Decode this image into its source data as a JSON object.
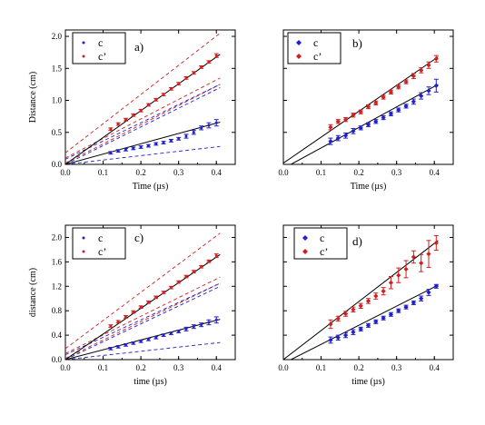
{
  "chart_data": [
    {
      "type": "scatter",
      "panel_label": "a)",
      "xlabel": "Time (µs)",
      "ylabel": "Distance (cm)",
      "xlim": [
        0,
        0.45
      ],
      "ylim": [
        0,
        2.1
      ],
      "xticks": [
        "0.0",
        "0.1",
        "0.2",
        "0.3",
        "0.4"
      ],
      "yticks": [
        "0.0",
        "0.5",
        "1.0",
        "1.5",
        "2.0"
      ],
      "legend": {
        "position": "top-left",
        "entries": [
          "c",
          "c’"
        ]
      },
      "marker": "small",
      "series": [
        {
          "name": "c",
          "color": "#1f1fd0",
          "x": [
            0.12,
            0.14,
            0.16,
            0.18,
            0.2,
            0.22,
            0.24,
            0.26,
            0.28,
            0.3,
            0.32,
            0.34,
            0.36,
            0.38,
            0.4
          ],
          "y": [
            0.18,
            0.21,
            0.23,
            0.25,
            0.27,
            0.29,
            0.32,
            0.34,
            0.37,
            0.4,
            0.44,
            0.5,
            0.57,
            0.61,
            0.65
          ],
          "err": [
            0.02,
            0.02,
            0.02,
            0.02,
            0.02,
            0.02,
            0.02,
            0.02,
            0.02,
            0.02,
            0.03,
            0.03,
            0.03,
            0.04,
            0.05
          ]
        },
        {
          "name": "c’",
          "color": "#d01f1f",
          "x": [
            0.12,
            0.14,
            0.16,
            0.18,
            0.2,
            0.22,
            0.24,
            0.26,
            0.28,
            0.3,
            0.32,
            0.34,
            0.36,
            0.38,
            0.4
          ],
          "y": [
            0.55,
            0.63,
            0.7,
            0.77,
            0.84,
            0.93,
            1.01,
            1.09,
            1.18,
            1.26,
            1.35,
            1.43,
            1.52,
            1.6,
            1.7
          ],
          "err": [
            0.02,
            0.02,
            0.02,
            0.02,
            0.02,
            0.02,
            0.02,
            0.02,
            0.02,
            0.02,
            0.02,
            0.02,
            0.02,
            0.02,
            0.03
          ]
        }
      ],
      "fit_lines": [
        {
          "color": "#000000",
          "dash": "solid",
          "x": [
            0,
            0.41
          ],
          "y": [
            0,
            1.72
          ]
        },
        {
          "color": "#000000",
          "dash": "solid",
          "x": [
            0,
            0.41
          ],
          "y": [
            0,
            0.66
          ]
        }
      ],
      "bound_lines": [
        {
          "color": "#d01f1f",
          "x": [
            0,
            0.41
          ],
          "y": [
            0.18,
            2.05
          ]
        },
        {
          "color": "#d01f1f",
          "x": [
            0,
            0.41
          ],
          "y": [
            0.1,
            1.35
          ]
        },
        {
          "color": "#d01f1f",
          "x": [
            0,
            0.41
          ],
          "y": [
            0.02,
            1.25
          ]
        },
        {
          "color": "#1f1fd0",
          "x": [
            0,
            0.41
          ],
          "y": [
            0.08,
            1.25
          ]
        },
        {
          "color": "#1f1fd0",
          "x": [
            0,
            0.41
          ],
          "y": [
            0.0,
            1.2
          ]
        },
        {
          "color": "#1f1fd0",
          "x": [
            0,
            0.41
          ],
          "y": [
            0.0,
            0.28
          ]
        }
      ]
    },
    {
      "type": "scatter",
      "panel_label": "b)",
      "xlabel": "Time (µs)",
      "ylabel": "",
      "xlim": [
        0,
        0.45
      ],
      "ylim": [
        0,
        2.1
      ],
      "xticks": [
        "0.0",
        "0.1",
        "0.2",
        "0.3",
        "0.4"
      ],
      "yticks": [],
      "legend": {
        "position": "top-left",
        "entries": [
          "c",
          "c’"
        ]
      },
      "marker": "diamond",
      "series": [
        {
          "name": "c",
          "color": "#1f1fd0",
          "x": [
            0.125,
            0.145,
            0.165,
            0.185,
            0.205,
            0.225,
            0.245,
            0.265,
            0.285,
            0.305,
            0.325,
            0.345,
            0.365,
            0.385,
            0.405
          ],
          "y": [
            0.36,
            0.41,
            0.45,
            0.52,
            0.57,
            0.62,
            0.67,
            0.73,
            0.79,
            0.85,
            0.91,
            0.98,
            1.07,
            1.15,
            1.23
          ],
          "err": [
            0.05,
            0.04,
            0.04,
            0.04,
            0.03,
            0.03,
            0.03,
            0.03,
            0.03,
            0.03,
            0.03,
            0.04,
            0.05,
            0.06,
            0.1
          ]
        },
        {
          "name": "c’",
          "color": "#d01f1f",
          "x": [
            0.125,
            0.145,
            0.165,
            0.185,
            0.205,
            0.225,
            0.245,
            0.265,
            0.285,
            0.305,
            0.325,
            0.345,
            0.365,
            0.385,
            0.405
          ],
          "y": [
            0.58,
            0.67,
            0.7,
            0.77,
            0.82,
            0.9,
            0.96,
            1.05,
            1.13,
            1.21,
            1.29,
            1.38,
            1.47,
            1.55,
            1.65
          ],
          "err": [
            0.04,
            0.03,
            0.03,
            0.03,
            0.03,
            0.03,
            0.03,
            0.03,
            0.03,
            0.03,
            0.03,
            0.04,
            0.04,
            0.05,
            0.05
          ]
        }
      ],
      "fit_lines": [
        {
          "color": "#000000",
          "dash": "solid",
          "x": [
            0,
            0.41
          ],
          "y": [
            0.02,
            1.68
          ]
        },
        {
          "color": "#000000",
          "dash": "solid",
          "x": [
            0.02,
            0.41
          ],
          "y": [
            0.0,
            1.25
          ]
        }
      ],
      "bound_lines": []
    },
    {
      "type": "scatter",
      "panel_label": "c)",
      "xlabel": "time (µs)",
      "ylabel": "distance (cm)",
      "xlim": [
        0,
        0.45
      ],
      "ylim": [
        0,
        2.2
      ],
      "xticks": [
        "0.0",
        "0.1",
        "0.2",
        "0.3",
        "0.4"
      ],
      "yticks": [
        "0.0",
        "0.4",
        "0.8",
        "1.2",
        "1.6",
        "2.0"
      ],
      "legend": {
        "position": "top-left",
        "entries": [
          "c",
          "c’"
        ]
      },
      "marker": "small",
      "series": [
        {
          "name": "c",
          "color": "#1f1fd0",
          "x": [
            0.12,
            0.14,
            0.16,
            0.18,
            0.2,
            0.22,
            0.24,
            0.26,
            0.28,
            0.3,
            0.32,
            0.34,
            0.36,
            0.38,
            0.4
          ],
          "y": [
            0.18,
            0.21,
            0.24,
            0.27,
            0.3,
            0.33,
            0.36,
            0.4,
            0.43,
            0.46,
            0.5,
            0.54,
            0.57,
            0.61,
            0.65
          ],
          "err": [
            0.02,
            0.02,
            0.02,
            0.02,
            0.02,
            0.02,
            0.02,
            0.02,
            0.02,
            0.02,
            0.03,
            0.03,
            0.03,
            0.04,
            0.05
          ]
        },
        {
          "name": "c’",
          "color": "#d01f1f",
          "x": [
            0.12,
            0.14,
            0.16,
            0.18,
            0.2,
            0.22,
            0.24,
            0.26,
            0.28,
            0.3,
            0.32,
            0.34,
            0.36,
            0.38,
            0.4
          ],
          "y": [
            0.55,
            0.62,
            0.7,
            0.78,
            0.86,
            0.94,
            1.02,
            1.1,
            1.18,
            1.27,
            1.36,
            1.44,
            1.52,
            1.61,
            1.7
          ],
          "err": [
            0.02,
            0.02,
            0.02,
            0.02,
            0.02,
            0.02,
            0.02,
            0.02,
            0.02,
            0.02,
            0.02,
            0.02,
            0.02,
            0.02,
            0.03
          ]
        }
      ],
      "fit_lines": [
        {
          "color": "#000000",
          "dash": "solid",
          "x": [
            0,
            0.41
          ],
          "y": [
            0,
            1.72
          ]
        },
        {
          "color": "#000000",
          "dash": "solid",
          "x": [
            0,
            0.41
          ],
          "y": [
            0,
            0.66
          ]
        }
      ],
      "bound_lines": [
        {
          "color": "#d01f1f",
          "x": [
            0,
            0.41
          ],
          "y": [
            0.18,
            2.07
          ]
        },
        {
          "color": "#d01f1f",
          "x": [
            0,
            0.41
          ],
          "y": [
            0.1,
            1.35
          ]
        },
        {
          "color": "#d01f1f",
          "x": [
            0,
            0.41
          ],
          "y": [
            0.02,
            1.25
          ]
        },
        {
          "color": "#1f1fd0",
          "x": [
            0,
            0.41
          ],
          "y": [
            0.08,
            1.25
          ]
        },
        {
          "color": "#1f1fd0",
          "x": [
            0,
            0.41
          ],
          "y": [
            0.0,
            1.2
          ]
        },
        {
          "color": "#1f1fd0",
          "x": [
            0,
            0.41
          ],
          "y": [
            0.0,
            0.28
          ]
        }
      ]
    },
    {
      "type": "scatter",
      "panel_label": "d)",
      "xlabel": "time (µs)",
      "ylabel": "",
      "xlim": [
        0,
        0.45
      ],
      "ylim": [
        0,
        2.2
      ],
      "xticks": [
        "0.0",
        "0.1",
        "0.2",
        "0.3",
        "0.4"
      ],
      "yticks": [],
      "legend": {
        "position": "top-right",
        "entries": [
          "c",
          "c’"
        ]
      },
      "marker": "diamond",
      "series": [
        {
          "name": "c",
          "color": "#1f1fd0",
          "x": [
            0.125,
            0.145,
            0.165,
            0.185,
            0.205,
            0.225,
            0.245,
            0.265,
            0.285,
            0.305,
            0.325,
            0.345,
            0.365,
            0.385,
            0.405
          ],
          "y": [
            0.32,
            0.36,
            0.4,
            0.45,
            0.5,
            0.56,
            0.62,
            0.68,
            0.74,
            0.8,
            0.86,
            0.93,
            1.0,
            1.1,
            1.2
          ],
          "err": [
            0.05,
            0.04,
            0.04,
            0.04,
            0.03,
            0.03,
            0.03,
            0.03,
            0.03,
            0.03,
            0.03,
            0.03,
            0.04,
            0.05,
            0.03
          ]
        },
        {
          "name": "c’",
          "color": "#d01f1f",
          "x": [
            0.125,
            0.145,
            0.165,
            0.185,
            0.205,
            0.225,
            0.245,
            0.265,
            0.285,
            0.305,
            0.325,
            0.345,
            0.365,
            0.385,
            0.405
          ],
          "y": [
            0.58,
            0.67,
            0.75,
            0.82,
            0.88,
            0.96,
            1.04,
            1.12,
            1.26,
            1.38,
            1.48,
            1.68,
            1.58,
            1.73,
            1.91
          ],
          "err": [
            0.07,
            0.04,
            0.04,
            0.04,
            0.04,
            0.04,
            0.05,
            0.06,
            0.1,
            0.12,
            0.14,
            0.1,
            0.14,
            0.22,
            0.12
          ]
        }
      ],
      "fit_lines": [
        {
          "color": "#000000",
          "dash": "solid",
          "x": [
            0,
            0.41
          ],
          "y": [
            0.0,
            1.95
          ]
        },
        {
          "color": "#000000",
          "dash": "solid",
          "x": [
            0.02,
            0.41
          ],
          "y": [
            0.0,
            1.22
          ]
        }
      ],
      "bound_lines": []
    }
  ]
}
